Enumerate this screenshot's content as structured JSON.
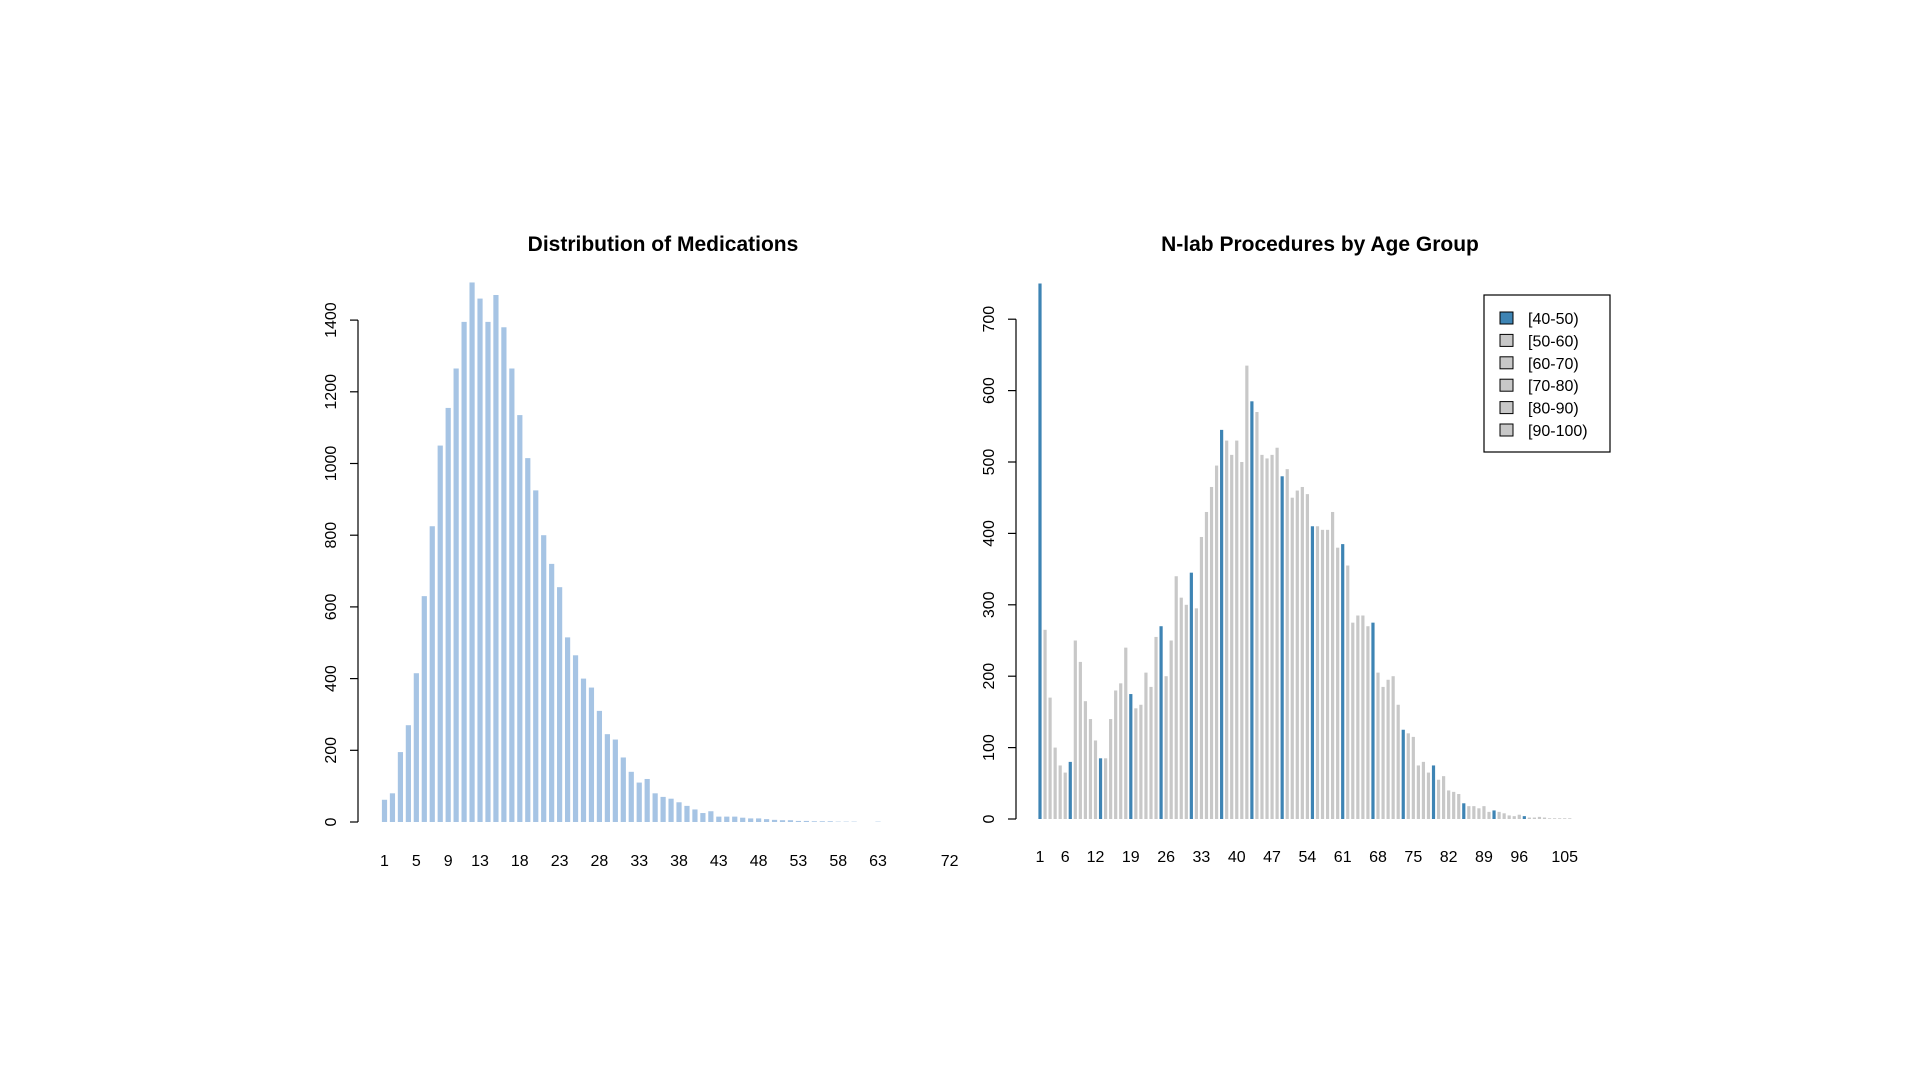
{
  "chart_data": [
    {
      "type": "bar",
      "title": "Distribution of Medications",
      "xlabel": "",
      "ylabel": "",
      "ylim": [
        0,
        1500
      ],
      "y_ticks": [
        0,
        200,
        400,
        600,
        800,
        1000,
        1200,
        1400
      ],
      "x_tick_labels": [
        "1",
        "5",
        "9",
        "13",
        "18",
        "23",
        "28",
        "33",
        "38",
        "43",
        "48",
        "53",
        "58",
        "63",
        "72"
      ],
      "bar_color": "#a6c4e4",
      "grid": false,
      "categories": [
        1,
        2,
        3,
        4,
        5,
        6,
        7,
        8,
        9,
        10,
        11,
        12,
        13,
        14,
        15,
        16,
        17,
        18,
        19,
        20,
        21,
        22,
        23,
        24,
        25,
        26,
        27,
        28,
        29,
        30,
        31,
        32,
        33,
        34,
        35,
        36,
        37,
        38,
        39,
        40,
        41,
        42,
        43,
        44,
        45,
        46,
        47,
        48,
        49,
        50,
        51,
        52,
        53,
        54,
        55,
        56,
        57,
        58,
        59,
        60,
        61,
        62,
        63
      ],
      "values": [
        62,
        80,
        195,
        270,
        415,
        630,
        825,
        1050,
        1155,
        1265,
        1395,
        1505,
        1460,
        1395,
        1470,
        1380,
        1265,
        1135,
        1015,
        925,
        800,
        720,
        655,
        515,
        465,
        400,
        375,
        310,
        245,
        230,
        180,
        140,
        110,
        120,
        80,
        70,
        65,
        55,
        45,
        35,
        25,
        30,
        15,
        15,
        15,
        12,
        10,
        10,
        8,
        6,
        5,
        5,
        3,
        3,
        2,
        2,
        2,
        1,
        1,
        1,
        0,
        0,
        1
      ]
    },
    {
      "type": "bar",
      "title": "N-lab Procedures by Age Group",
      "xlabel": "",
      "ylabel": "",
      "ylim": [
        0,
        750
      ],
      "y_ticks": [
        0,
        100,
        200,
        300,
        400,
        500,
        600,
        700
      ],
      "x_tick_labels": [
        "1",
        "6",
        "12",
        "19",
        "26",
        "33",
        "40",
        "47",
        "54",
        "61",
        "68",
        "75",
        "82",
        "89",
        "96",
        "105"
      ],
      "grid": false,
      "legend_position": "top-right",
      "legend": [
        {
          "label": "[40-50)",
          "color": "#3e84b4"
        },
        {
          "label": "[50-60)",
          "color": "#c8c8c8"
        },
        {
          "label": "[60-70)",
          "color": "#c8c8c8"
        },
        {
          "label": "[70-80)",
          "color": "#c8c8c8"
        },
        {
          "label": "[80-90)",
          "color": "#c8c8c8"
        },
        {
          "label": "[90-100)",
          "color": "#c8c8c8"
        }
      ],
      "highlight_color": "#3e84b4",
      "other_color": "#c8c8c8",
      "highlighted_bars": [
        0,
        6,
        12,
        18,
        24,
        30,
        36,
        42,
        48,
        54,
        60,
        66,
        72,
        78,
        84,
        90,
        96
      ],
      "categories": [
        1,
        2,
        3,
        4,
        5,
        6,
        7,
        8,
        9,
        10,
        11,
        12,
        13,
        14,
        15,
        16,
        17,
        18,
        19,
        20,
        21,
        22,
        23,
        24,
        25,
        26,
        27,
        28,
        29,
        30,
        31,
        32,
        33,
        34,
        35,
        36,
        37,
        38,
        39,
        40,
        41,
        42,
        43,
        44,
        45,
        46,
        47,
        48,
        49,
        50,
        51,
        52,
        53,
        54,
        55,
        56,
        57,
        58,
        59,
        60,
        61,
        62,
        63,
        64,
        65,
        66,
        67,
        68,
        69,
        70,
        71,
        72,
        73,
        74,
        75,
        76,
        77,
        78,
        79,
        80,
        81,
        82,
        83,
        84,
        85,
        86,
        87,
        88,
        89,
        90,
        91,
        92,
        93,
        94,
        95,
        96,
        97,
        98,
        99,
        100,
        101,
        102,
        103,
        104,
        105,
        106
      ],
      "values": [
        750,
        265,
        170,
        100,
        75,
        65,
        80,
        250,
        220,
        165,
        140,
        110,
        85,
        85,
        140,
        180,
        190,
        240,
        175,
        155,
        160,
        205,
        185,
        255,
        270,
        200,
        250,
        340,
        310,
        300,
        345,
        295,
        395,
        430,
        465,
        495,
        545,
        530,
        510,
        530,
        500,
        635,
        585,
        570,
        510,
        505,
        510,
        520,
        480,
        490,
        450,
        460,
        465,
        455,
        410,
        410,
        405,
        405,
        430,
        380,
        385,
        355,
        275,
        285,
        285,
        270,
        275,
        205,
        185,
        195,
        200,
        160,
        125,
        120,
        115,
        75,
        80,
        65,
        75,
        55,
        60,
        40,
        38,
        35,
        22,
        18,
        18,
        15,
        18,
        10,
        12,
        10,
        8,
        5,
        4,
        6,
        4,
        2,
        2,
        3,
        2,
        1,
        1,
        1,
        1,
        1
      ]
    }
  ]
}
